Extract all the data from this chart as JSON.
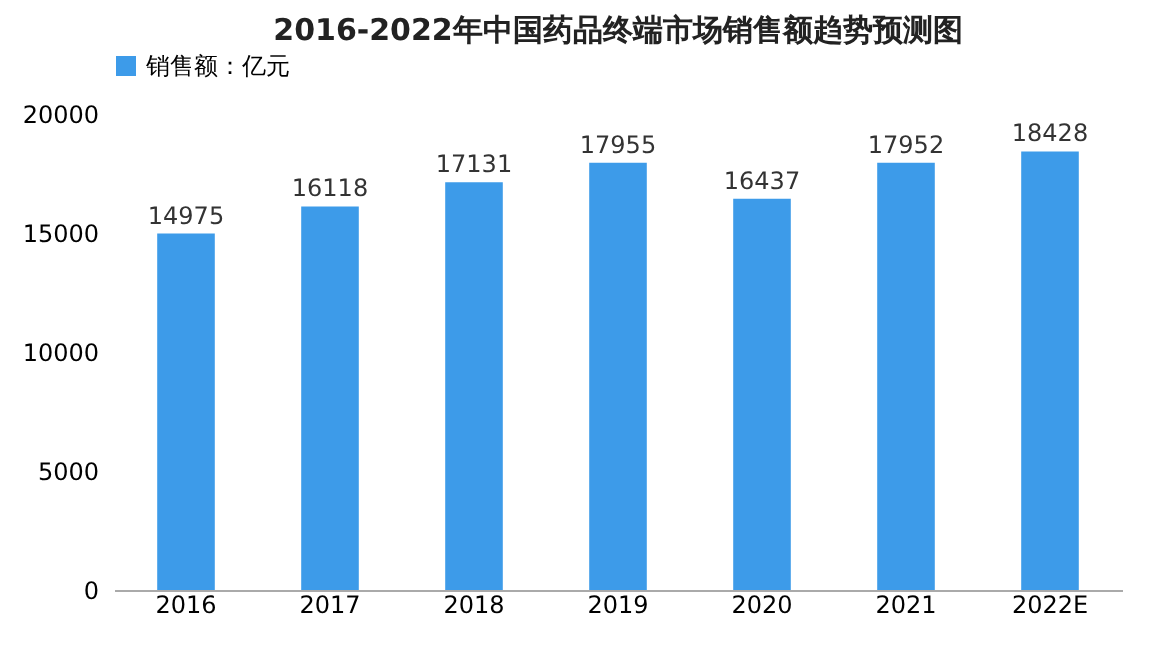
{
  "chart_data": {
    "type": "bar",
    "title": "2016-2022年中国药品终端市场销售额趋势预测图",
    "categories": [
      "2016",
      "2017",
      "2018",
      "2019",
      "2020",
      "2021",
      "2022E"
    ],
    "series": [
      {
        "name": "销售额：亿元",
        "color": "#3d9be9",
        "values": [
          14975,
          16118,
          17131,
          17955,
          16437,
          17952,
          18428
        ]
      }
    ],
    "ylim": [
      0,
      20000
    ],
    "yticks": [
      0,
      5000,
      10000,
      15000,
      20000
    ],
    "grid": false,
    "legend": "top",
    "data_labels": true
  }
}
